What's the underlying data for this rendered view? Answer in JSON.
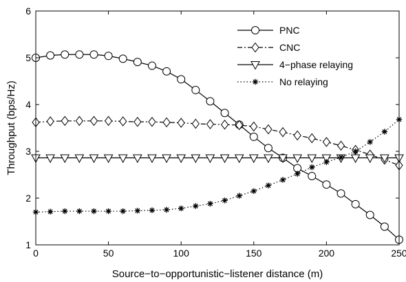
{
  "chart_data": {
    "type": "line",
    "title": "",
    "xlabel": "Source−to−opportunistic−listener distance (m)",
    "ylabel": "Throughput (bps/Hz)",
    "xlim": [
      0,
      250
    ],
    "ylim": [
      1,
      6
    ],
    "xticks": [
      0,
      50,
      100,
      150,
      200,
      250
    ],
    "yticks": [
      1,
      2,
      3,
      4,
      5,
      6
    ],
    "grid": false,
    "legend_position": "top-right",
    "x": [
      0,
      10,
      20,
      30,
      40,
      50,
      60,
      70,
      80,
      90,
      100,
      110,
      120,
      130,
      140,
      150,
      160,
      170,
      180,
      190,
      200,
      210,
      220,
      230,
      240,
      250
    ],
    "series": [
      {
        "name": "PNC",
        "line_style": "solid",
        "marker": "circle",
        "values": [
          5.0,
          5.05,
          5.07,
          5.07,
          5.07,
          5.04,
          4.98,
          4.91,
          4.83,
          4.71,
          4.54,
          4.31,
          4.07,
          3.82,
          3.57,
          3.31,
          3.07,
          2.86,
          2.64,
          2.47,
          2.29,
          2.1,
          1.87,
          1.64,
          1.39,
          1.11
        ]
      },
      {
        "name": "CNC",
        "line_style": "dash-dot",
        "marker": "diamond",
        "values": [
          3.62,
          3.64,
          3.65,
          3.65,
          3.65,
          3.65,
          3.64,
          3.63,
          3.63,
          3.62,
          3.61,
          3.59,
          3.58,
          3.57,
          3.56,
          3.53,
          3.47,
          3.41,
          3.34,
          3.28,
          3.2,
          3.12,
          3.03,
          2.93,
          2.82,
          2.7
        ]
      },
      {
        "name": "4−phase relaying",
        "line_style": "solid",
        "marker": "triangle-down",
        "values": [
          2.86,
          2.86,
          2.86,
          2.86,
          2.86,
          2.86,
          2.86,
          2.86,
          2.86,
          2.86,
          2.86,
          2.86,
          2.86,
          2.86,
          2.86,
          2.86,
          2.86,
          2.86,
          2.86,
          2.86,
          2.86,
          2.86,
          2.86,
          2.86,
          2.86,
          2.86
        ]
      },
      {
        "name": "No relaying",
        "line_style": "dotted",
        "marker": "asterisk",
        "values": [
          1.7,
          1.71,
          1.72,
          1.72,
          1.72,
          1.72,
          1.72,
          1.73,
          1.74,
          1.75,
          1.78,
          1.83,
          1.88,
          1.95,
          2.05,
          2.15,
          2.27,
          2.39,
          2.52,
          2.66,
          2.77,
          2.87,
          3.0,
          3.2,
          3.42,
          3.68
        ]
      }
    ]
  }
}
